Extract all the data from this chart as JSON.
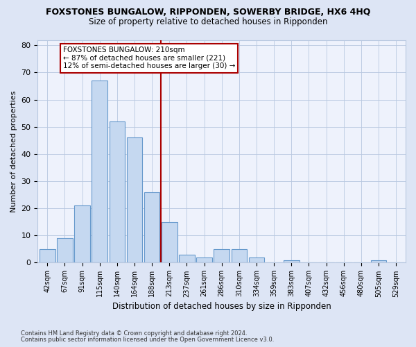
{
  "title": "FOXSTONES BUNGALOW, RIPPONDEN, SOWERBY BRIDGE, HX6 4HQ",
  "subtitle": "Size of property relative to detached houses in Ripponden",
  "xlabel": "Distribution of detached houses by size in Ripponden",
  "ylabel": "Number of detached properties",
  "categories": [
    "42sqm",
    "67sqm",
    "91sqm",
    "115sqm",
    "140sqm",
    "164sqm",
    "188sqm",
    "213sqm",
    "237sqm",
    "261sqm",
    "286sqm",
    "310sqm",
    "334sqm",
    "359sqm",
    "383sqm",
    "407sqm",
    "432sqm",
    "456sqm",
    "480sqm",
    "505sqm",
    "529sqm"
  ],
  "values": [
    5,
    9,
    21,
    67,
    52,
    46,
    26,
    15,
    3,
    2,
    5,
    5,
    2,
    0,
    1,
    0,
    0,
    0,
    0,
    1,
    0
  ],
  "bar_color": "#c5d8f0",
  "bar_edge_color": "#6699cc",
  "vline_color": "#aa0000",
  "annotation_line1": "FOXSTONES BUNGALOW: 210sqm",
  "annotation_line2": "← 87% of detached houses are smaller (221)",
  "annotation_line3": "12% of semi-detached houses are larger (30) →",
  "annotation_box_edge": "#aa0000",
  "ylim": [
    0,
    82
  ],
  "yticks": [
    0,
    10,
    20,
    30,
    40,
    50,
    60,
    70,
    80
  ],
  "footer1": "Contains HM Land Registry data © Crown copyright and database right 2024.",
  "footer2": "Contains public sector information licensed under the Open Government Licence v3.0.",
  "background_color": "#dde5f5",
  "plot_bg_color": "#eef2fc",
  "grid_color": "#b8c8e0"
}
